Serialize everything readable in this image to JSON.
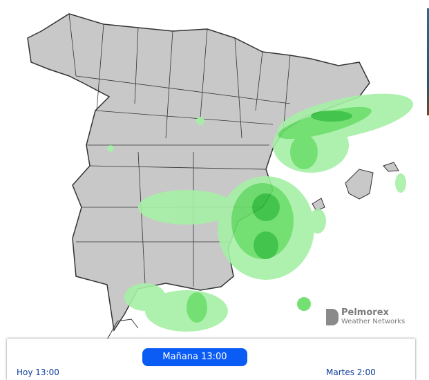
{
  "map": {
    "region": "Spain",
    "layer": "precipitation forecast",
    "colors": {
      "land": "#c8c8c8",
      "border": "#333333",
      "rain_light": "#a6f0a6",
      "rain_medium": "#66dd66",
      "rain_heavy": "#2fbf3a"
    }
  },
  "logo": {
    "name": "Pelmorex",
    "subtitle": "Weather Networks"
  },
  "timeline": {
    "current": "Mañana 13:00",
    "start": "Hoy 13:00",
    "end": "Martes 2:00"
  }
}
